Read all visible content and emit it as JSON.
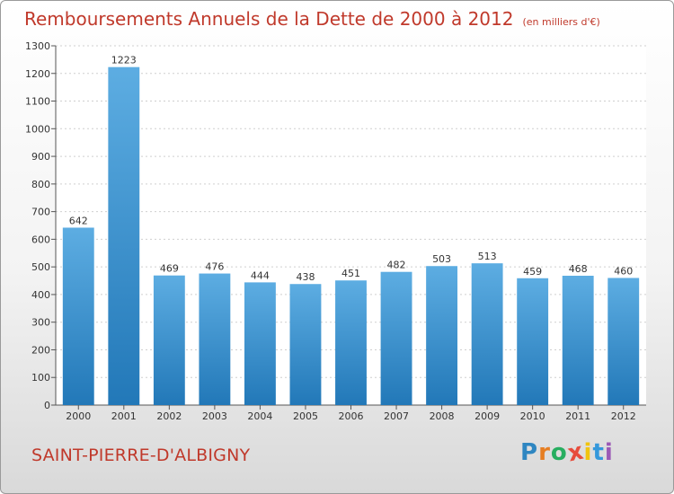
{
  "chart_data": {
    "type": "bar",
    "title": "Remboursements Annuels de la Dette de 2000 à 2012",
    "subtitle": "(en milliers d'€)",
    "categories": [
      "2000",
      "2001",
      "2002",
      "2003",
      "2004",
      "2005",
      "2006",
      "2007",
      "2008",
      "2009",
      "2010",
      "2011",
      "2012"
    ],
    "values": [
      642,
      1223,
      469,
      476,
      444,
      438,
      451,
      482,
      503,
      513,
      459,
      468,
      460
    ],
    "ylim": [
      0,
      1300
    ],
    "yticks": [
      0,
      100,
      200,
      300,
      400,
      500,
      600,
      700,
      800,
      900,
      1000,
      1100,
      1200,
      1300
    ],
    "grid": true,
    "bar_color_top": "#5dade2",
    "bar_color_bottom": "#2278b8"
  },
  "footer": {
    "town": "SAINT-PIERRE-D'ALBIGNY",
    "logo_letters": [
      "P",
      "r",
      "o",
      "x",
      "i",
      "t",
      "i"
    ],
    "logo_colors": [
      "#2e86c1",
      "#e67e22",
      "#27ae60",
      "#e74c3c",
      "#f1c40f",
      "#3498db",
      "#9b59b6"
    ]
  }
}
